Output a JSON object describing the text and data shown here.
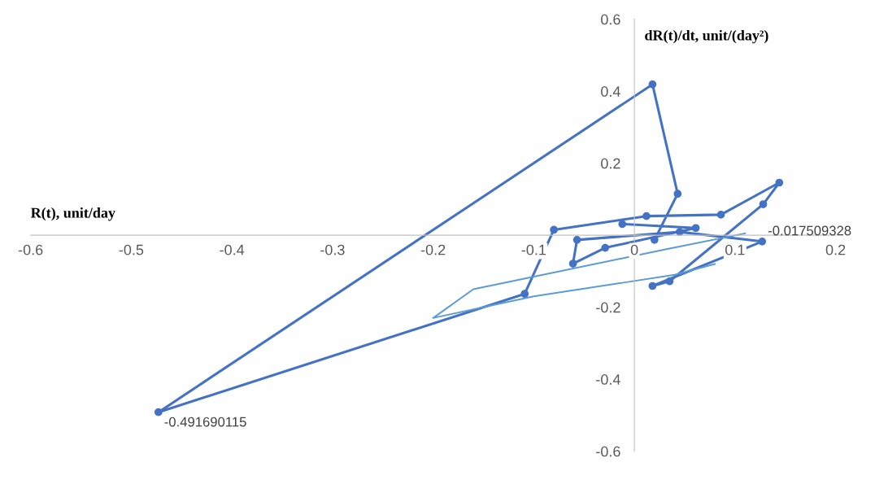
{
  "chart_data": {
    "type": "line",
    "xlabel": "R(t), unit/day",
    "ylabel": "dR(t)/dt, unit/(day²)",
    "xlim": [
      -0.6,
      0.2
    ],
    "ylim": [
      -0.6,
      0.6
    ],
    "xticks": [
      -0.6,
      -0.5,
      -0.4,
      -0.3,
      -0.2,
      -0.1,
      0,
      0.1,
      0.2
    ],
    "yticks": [
      -0.6,
      -0.4,
      -0.2,
      0.2,
      0.4,
      0.6
    ],
    "grid": false,
    "legend": false,
    "series": [
      {
        "color": "#4472c4",
        "marker": "circle",
        "line_style": "solid",
        "x": [
          0.02,
          0.043,
          0.018,
          -0.473,
          -0.109,
          -0.08,
          0.012,
          0.086,
          0.144,
          0.128,
          0.035,
          0.018,
          0.127,
          0.045,
          -0.057,
          -0.061,
          -0.029,
          0.061,
          -0.012
        ],
        "values": [
          -0.013,
          0.115,
          0.419,
          -0.4917,
          -0.163,
          0.015,
          0.053,
          0.057,
          0.146,
          0.086,
          -0.128,
          -0.141,
          -0.0175,
          0.009,
          -0.013,
          -0.079,
          -0.035,
          0.02,
          0.031
        ]
      },
      {
        "color": "#5b9bd5",
        "marker": "none",
        "line_style": "solid",
        "x": [
          0.11,
          0.03,
          -0.16,
          -0.2,
          -0.1,
          0.04,
          0.08
        ],
        "values": [
          0.005,
          -0.04,
          -0.15,
          -0.23,
          -0.17,
          -0.11,
          -0.08
        ]
      }
    ],
    "annotations": [
      {
        "text": "-0.491690115",
        "x": -0.473,
        "y": -0.4917
      },
      {
        "text": "-0.017509328",
        "x": 0.127,
        "y": -0.0175
      }
    ]
  }
}
